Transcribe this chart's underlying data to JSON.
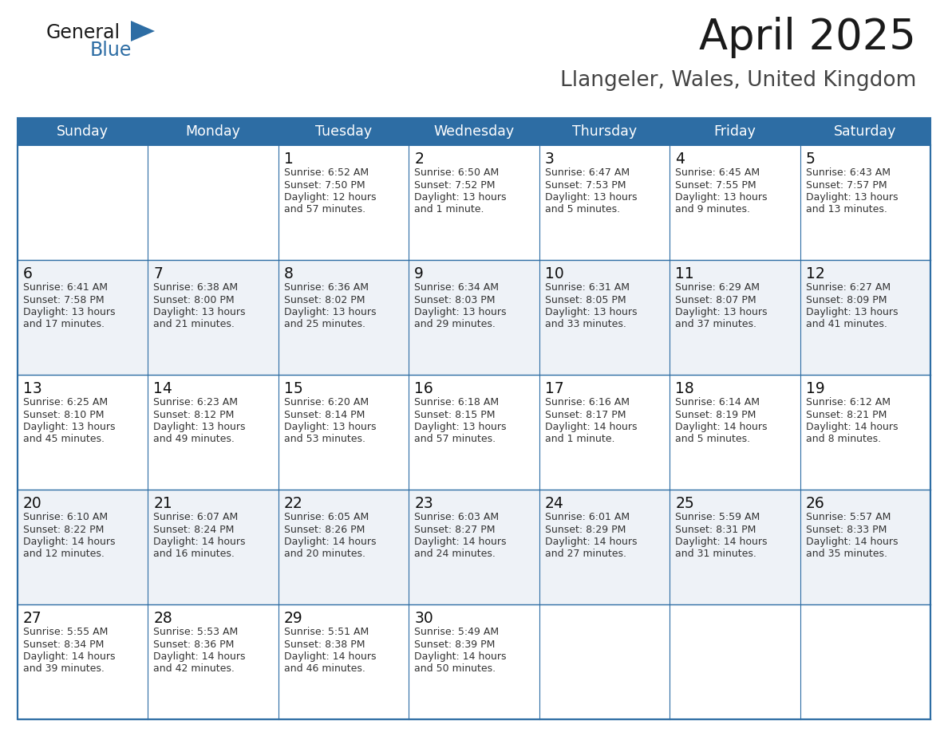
{
  "title": "April 2025",
  "subtitle": "Llangeler, Wales, United Kingdom",
  "header_color": "#2D6DA4",
  "header_text_color": "#FFFFFF",
  "cell_bg_even": "#FFFFFF",
  "cell_bg_odd": "#F0F4F8",
  "border_color": "#2D6DA4",
  "text_color": "#333333",
  "day_number_color": "#1a1a1a",
  "days_of_week": [
    "Sunday",
    "Monday",
    "Tuesday",
    "Wednesday",
    "Thursday",
    "Friday",
    "Saturday"
  ],
  "weeks": [
    [
      {
        "day": "",
        "info": ""
      },
      {
        "day": "",
        "info": ""
      },
      {
        "day": "1",
        "info": "Sunrise: 6:52 AM\nSunset: 7:50 PM\nDaylight: 12 hours\nand 57 minutes."
      },
      {
        "day": "2",
        "info": "Sunrise: 6:50 AM\nSunset: 7:52 PM\nDaylight: 13 hours\nand 1 minute."
      },
      {
        "day": "3",
        "info": "Sunrise: 6:47 AM\nSunset: 7:53 PM\nDaylight: 13 hours\nand 5 minutes."
      },
      {
        "day": "4",
        "info": "Sunrise: 6:45 AM\nSunset: 7:55 PM\nDaylight: 13 hours\nand 9 minutes."
      },
      {
        "day": "5",
        "info": "Sunrise: 6:43 AM\nSunset: 7:57 PM\nDaylight: 13 hours\nand 13 minutes."
      }
    ],
    [
      {
        "day": "6",
        "info": "Sunrise: 6:41 AM\nSunset: 7:58 PM\nDaylight: 13 hours\nand 17 minutes."
      },
      {
        "day": "7",
        "info": "Sunrise: 6:38 AM\nSunset: 8:00 PM\nDaylight: 13 hours\nand 21 minutes."
      },
      {
        "day": "8",
        "info": "Sunrise: 6:36 AM\nSunset: 8:02 PM\nDaylight: 13 hours\nand 25 minutes."
      },
      {
        "day": "9",
        "info": "Sunrise: 6:34 AM\nSunset: 8:03 PM\nDaylight: 13 hours\nand 29 minutes."
      },
      {
        "day": "10",
        "info": "Sunrise: 6:31 AM\nSunset: 8:05 PM\nDaylight: 13 hours\nand 33 minutes."
      },
      {
        "day": "11",
        "info": "Sunrise: 6:29 AM\nSunset: 8:07 PM\nDaylight: 13 hours\nand 37 minutes."
      },
      {
        "day": "12",
        "info": "Sunrise: 6:27 AM\nSunset: 8:09 PM\nDaylight: 13 hours\nand 41 minutes."
      }
    ],
    [
      {
        "day": "13",
        "info": "Sunrise: 6:25 AM\nSunset: 8:10 PM\nDaylight: 13 hours\nand 45 minutes."
      },
      {
        "day": "14",
        "info": "Sunrise: 6:23 AM\nSunset: 8:12 PM\nDaylight: 13 hours\nand 49 minutes."
      },
      {
        "day": "15",
        "info": "Sunrise: 6:20 AM\nSunset: 8:14 PM\nDaylight: 13 hours\nand 53 minutes."
      },
      {
        "day": "16",
        "info": "Sunrise: 6:18 AM\nSunset: 8:15 PM\nDaylight: 13 hours\nand 57 minutes."
      },
      {
        "day": "17",
        "info": "Sunrise: 6:16 AM\nSunset: 8:17 PM\nDaylight: 14 hours\nand 1 minute."
      },
      {
        "day": "18",
        "info": "Sunrise: 6:14 AM\nSunset: 8:19 PM\nDaylight: 14 hours\nand 5 minutes."
      },
      {
        "day": "19",
        "info": "Sunrise: 6:12 AM\nSunset: 8:21 PM\nDaylight: 14 hours\nand 8 minutes."
      }
    ],
    [
      {
        "day": "20",
        "info": "Sunrise: 6:10 AM\nSunset: 8:22 PM\nDaylight: 14 hours\nand 12 minutes."
      },
      {
        "day": "21",
        "info": "Sunrise: 6:07 AM\nSunset: 8:24 PM\nDaylight: 14 hours\nand 16 minutes."
      },
      {
        "day": "22",
        "info": "Sunrise: 6:05 AM\nSunset: 8:26 PM\nDaylight: 14 hours\nand 20 minutes."
      },
      {
        "day": "23",
        "info": "Sunrise: 6:03 AM\nSunset: 8:27 PM\nDaylight: 14 hours\nand 24 minutes."
      },
      {
        "day": "24",
        "info": "Sunrise: 6:01 AM\nSunset: 8:29 PM\nDaylight: 14 hours\nand 27 minutes."
      },
      {
        "day": "25",
        "info": "Sunrise: 5:59 AM\nSunset: 8:31 PM\nDaylight: 14 hours\nand 31 minutes."
      },
      {
        "day": "26",
        "info": "Sunrise: 5:57 AM\nSunset: 8:33 PM\nDaylight: 14 hours\nand 35 minutes."
      }
    ],
    [
      {
        "day": "27",
        "info": "Sunrise: 5:55 AM\nSunset: 8:34 PM\nDaylight: 14 hours\nand 39 minutes."
      },
      {
        "day": "28",
        "info": "Sunrise: 5:53 AM\nSunset: 8:36 PM\nDaylight: 14 hours\nand 42 minutes."
      },
      {
        "day": "29",
        "info": "Sunrise: 5:51 AM\nSunset: 8:38 PM\nDaylight: 14 hours\nand 46 minutes."
      },
      {
        "day": "30",
        "info": "Sunrise: 5:49 AM\nSunset: 8:39 PM\nDaylight: 14 hours\nand 50 minutes."
      },
      {
        "day": "",
        "info": ""
      },
      {
        "day": "",
        "info": ""
      },
      {
        "day": "",
        "info": ""
      }
    ]
  ]
}
